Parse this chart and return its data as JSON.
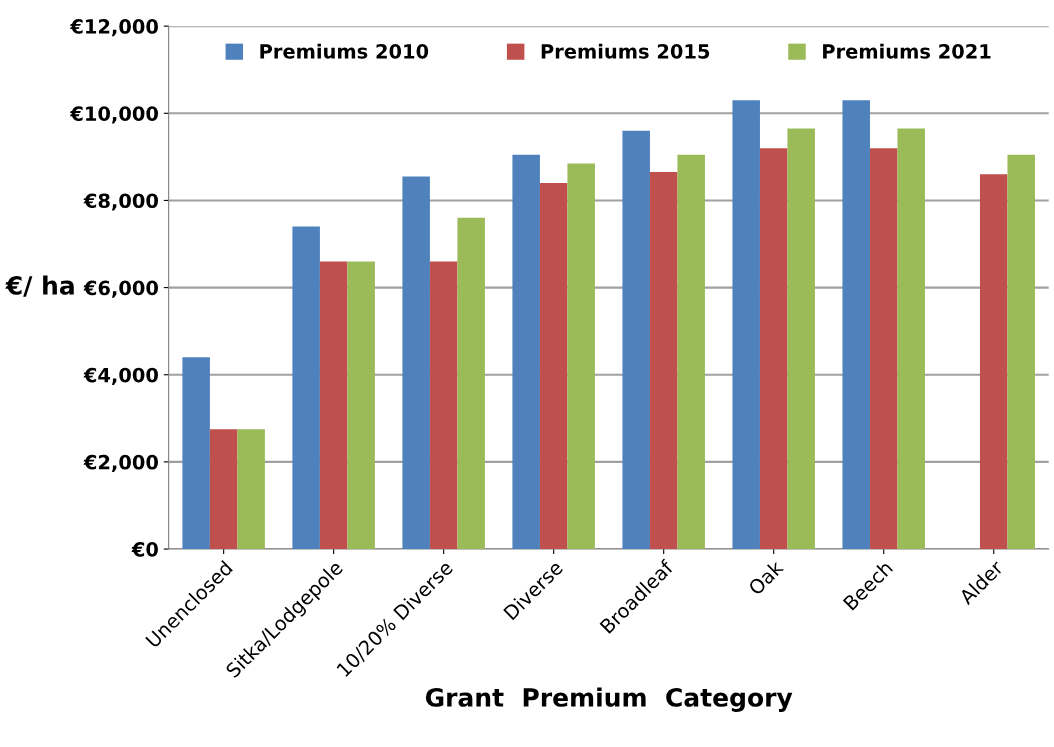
{
  "chart_data": {
    "type": "bar",
    "xlabel": "Grant  Premium  Category",
    "ylabel": "€/ ha",
    "categories": [
      "Unenclosed",
      "Sitka/Lodgepole",
      "10/20% Diverse",
      "Diverse",
      "Broadleaf",
      "Oak",
      "Beech",
      "Alder"
    ],
    "series": [
      {
        "name": "Premiums 2010",
        "color": "#4f81bd",
        "values": [
          4400,
          7400,
          8550,
          9050,
          9600,
          10300,
          10300,
          null
        ]
      },
      {
        "name": "Premiums 2015",
        "color": "#c0504d",
        "values": [
          2750,
          6600,
          6600,
          8400,
          8650,
          9200,
          9200,
          8600
        ]
      },
      {
        "name": "Premiums 2021",
        "color": "#9bbb59",
        "values": [
          2750,
          6600,
          7600,
          8850,
          9050,
          9650,
          9650,
          9050
        ]
      }
    ],
    "ylim": [
      0,
      12000
    ],
    "yticks": [
      {
        "value": 0,
        "label": "€0"
      },
      {
        "value": 2000,
        "label": "€2,000"
      },
      {
        "value": 4000,
        "label": "€4,000"
      },
      {
        "value": 6000,
        "label": "€6,000"
      },
      {
        "value": 8000,
        "label": "€8,000"
      },
      {
        "value": 10000,
        "label": "€10,000"
      },
      {
        "value": 12000,
        "label": "€12,000"
      }
    ],
    "grid": "y",
    "legend": "top"
  }
}
